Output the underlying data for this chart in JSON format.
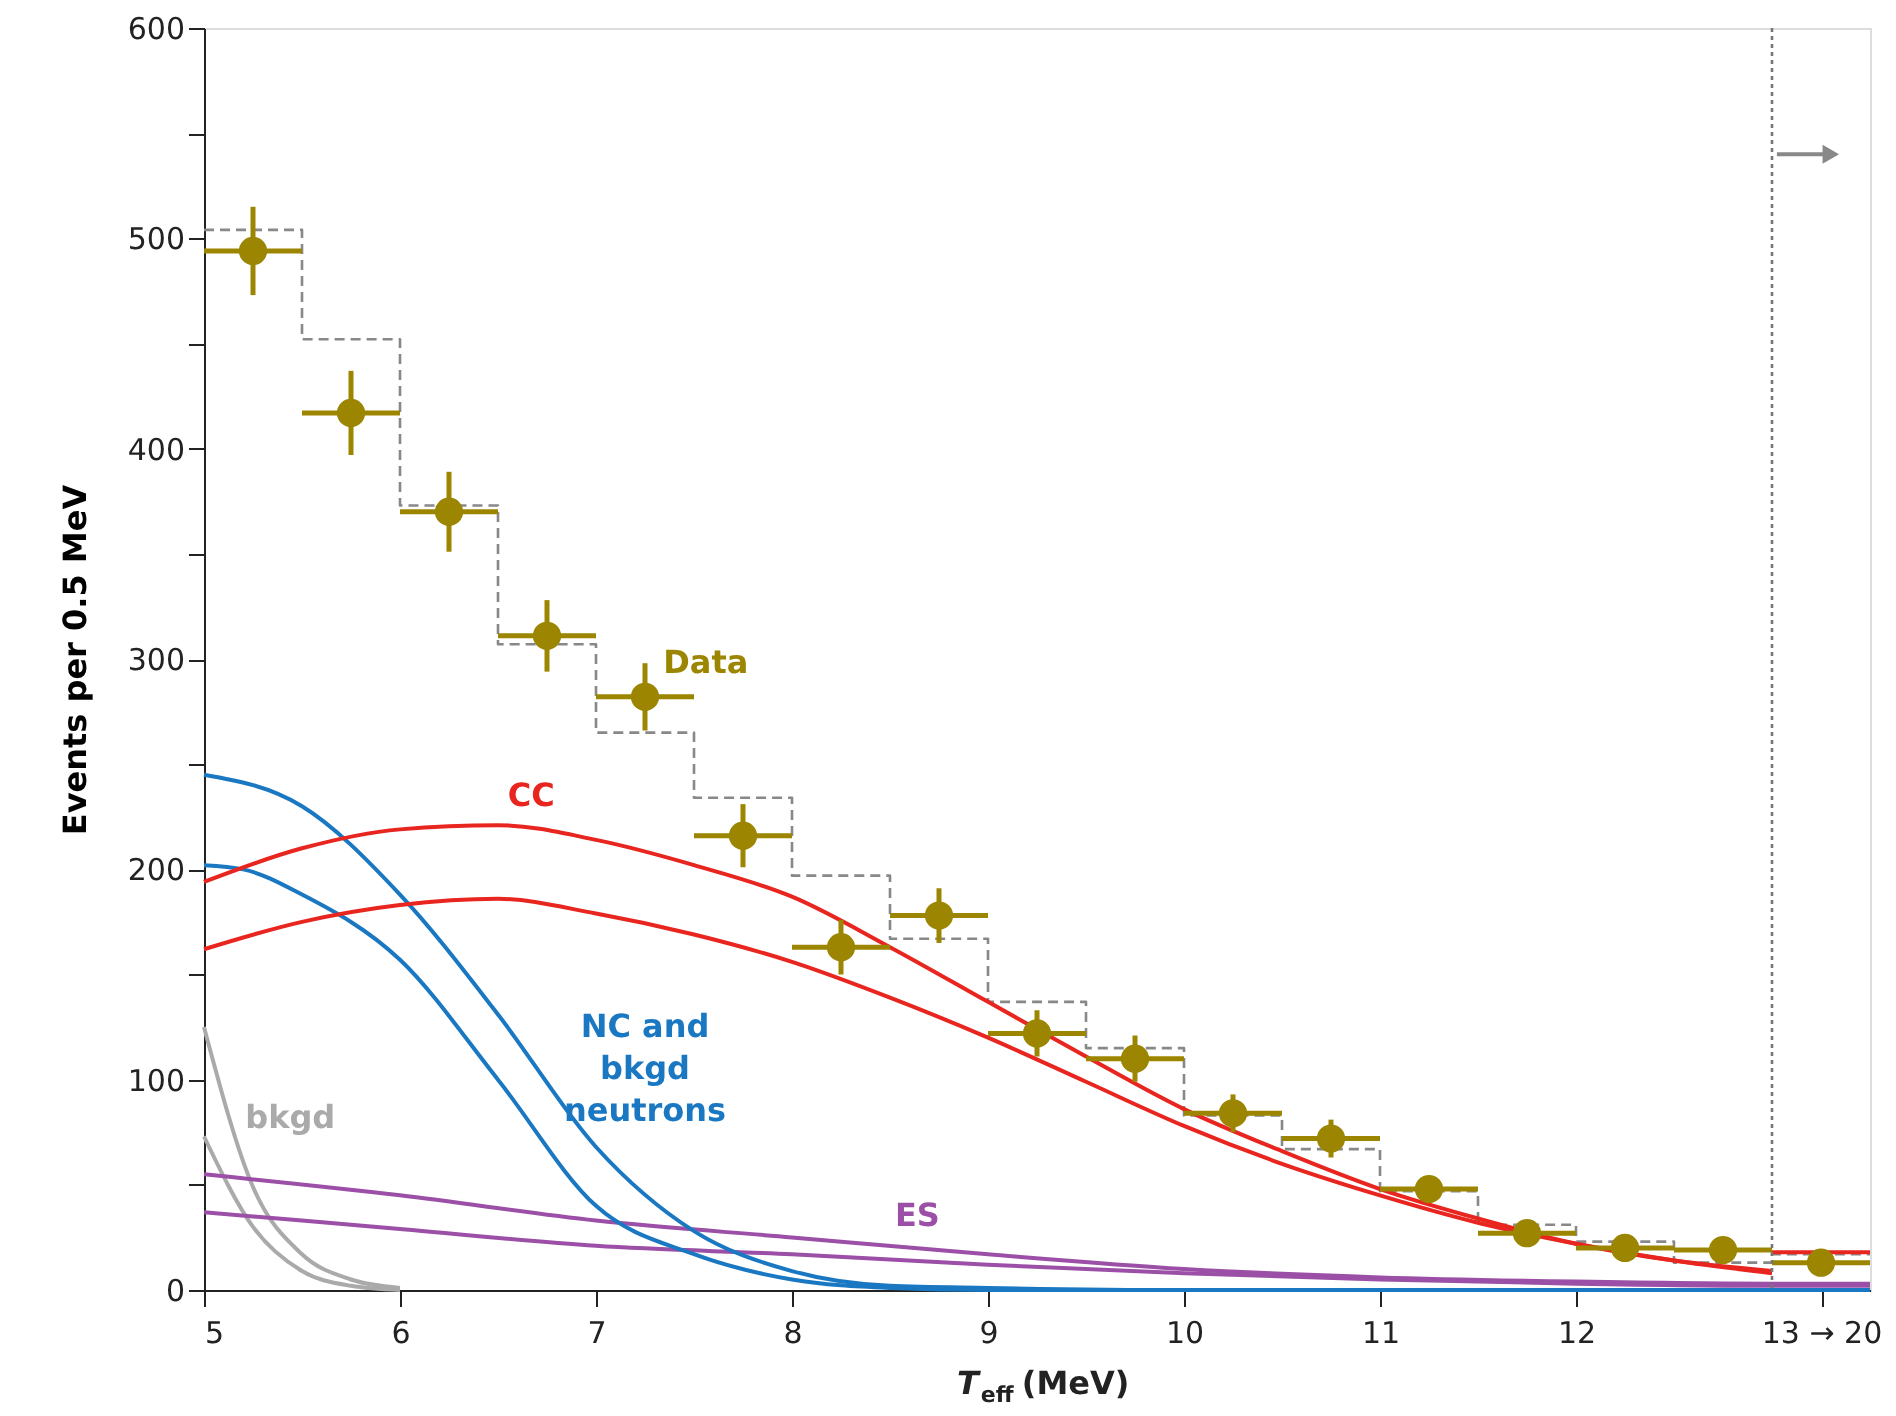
{
  "chart_data": {
    "type": "line",
    "xlabel": "T$_{eff}$ (MeV)",
    "ylabel": "Events per 0.5 MeV",
    "xlim": [
      5,
      13.5
    ],
    "ylim": [
      0,
      600
    ],
    "xticks": [
      5,
      6,
      7,
      8,
      9,
      10,
      11,
      12,
      {
        "value": 13.25,
        "label": "13 → 20"
      }
    ],
    "yticks": [
      0,
      {
        "value": 50,
        "label": null
      },
      100,
      {
        "value": 150,
        "label": null
      },
      200,
      {
        "value": 250,
        "label": null
      },
      300,
      {
        "value": 350,
        "label": null
      },
      400,
      {
        "value": 450,
        "label": null
      },
      500,
      {
        "value": 550,
        "label": null
      },
      600
    ],
    "grid": false,
    "ref_lines": [
      {
        "axis": "x",
        "value": 13,
        "label": null,
        "color": "#777777",
        "line_style": "dotted"
      }
    ],
    "series": [
      {
        "type": "step",
        "color": "#888888",
        "line_style": "dashed",
        "x": [
          5,
          5.5,
          6,
          6.5,
          7,
          7.5,
          8,
          8.5,
          9,
          9.5,
          10,
          10.5,
          11,
          11.5,
          12,
          12.5,
          13,
          13.5
        ],
        "values": [
          504,
          452,
          373,
          307,
          265,
          234,
          197,
          167,
          137,
          115,
          83,
          67,
          47,
          31,
          23,
          13,
          17,
          17
        ]
      },
      {
        "type": "line",
        "name": "bkgd",
        "color": "#aaaaaa",
        "x": [
          5,
          5.25,
          5.5,
          5.75,
          6
        ],
        "values": [
          125,
          49,
          17,
          5,
          1
        ]
      },
      {
        "type": "line",
        "color": "#aaaaaa",
        "x": [
          5,
          5.25,
          5.5,
          5.75,
          6
        ],
        "values": [
          73,
          30,
          9,
          2,
          0
        ]
      },
      {
        "type": "line",
        "name": "ES",
        "color": "#9b4fa6",
        "x": [
          5,
          6,
          7,
          8,
          9,
          10,
          11,
          12,
          13,
          13.5
        ],
        "values": [
          55,
          45,
          33,
          25,
          17,
          10,
          6,
          4,
          3,
          3
        ]
      },
      {
        "type": "line",
        "color": "#9b4fa6",
        "x": [
          5,
          6,
          7,
          8,
          9,
          10,
          11,
          12,
          13,
          13.5
        ],
        "values": [
          37,
          29,
          21,
          17,
          12,
          8,
          5,
          3,
          2,
          2
        ]
      },
      {
        "type": "line",
        "name": "NC and bkgd neutrons",
        "color": "#1a78c2",
        "x": [
          5,
          5.5,
          6,
          6.5,
          7,
          7.5,
          8,
          8.5,
          9,
          10,
          11,
          12,
          13,
          13.5
        ],
        "values": [
          245,
          230,
          188,
          131,
          68,
          28,
          9,
          2,
          1,
          0,
          0,
          0,
          0,
          0
        ]
      },
      {
        "type": "line",
        "color": "#1a78c2",
        "x": [
          5,
          5.2,
          5.5,
          6,
          6.5,
          7,
          7.5,
          8,
          8.5,
          9,
          10,
          11,
          12,
          13,
          13.5
        ],
        "values": [
          202,
          200,
          188,
          157,
          100,
          40,
          17,
          5,
          1,
          0,
          0,
          0,
          0,
          0,
          0
        ]
      },
      {
        "type": "line",
        "name": "CC",
        "color": "#e8251f",
        "x": [
          5,
          5.5,
          6,
          6.5,
          7,
          7.5,
          8,
          8.5,
          9,
          9.5,
          10,
          10.5,
          11,
          11.5,
          12,
          12.5,
          13
        ],
        "values": [
          194,
          210,
          219,
          221,
          214,
          202,
          187,
          163,
          137,
          111,
          86,
          66,
          48,
          34,
          22,
          14,
          9
        ]
      },
      {
        "type": "line",
        "color": "#e8251f",
        "x": [
          5,
          5.5,
          6,
          6.5,
          7,
          7.5,
          8,
          8.5,
          9,
          9.5,
          10,
          10.5,
          11,
          11.5,
          12,
          12.5,
          13
        ],
        "values": [
          162,
          175,
          183,
          186,
          179,
          169,
          156,
          139,
          120,
          99,
          78,
          60,
          45,
          32,
          22,
          14,
          8
        ]
      },
      {
        "type": "line",
        "color": "#e8251f",
        "x": [
          13,
          13.5
        ],
        "values": [
          18,
          18
        ]
      },
      {
        "type": "scatter",
        "name": "Data",
        "color": "#9c8500",
        "marker": "circle",
        "x": [
          5.25,
          5.75,
          6.25,
          6.75,
          7.25,
          7.75,
          8.25,
          8.75,
          9.25,
          9.75,
          10.25,
          10.75,
          11.25,
          11.75,
          12.25,
          12.75,
          13.25
        ],
        "values": [
          494,
          417,
          370,
          311,
          282,
          216,
          163,
          178,
          122,
          110,
          84,
          72,
          48,
          27,
          20,
          19,
          13
        ],
        "errors": [
          21,
          20,
          19,
          17,
          16,
          15,
          13,
          13,
          11,
          11,
          9,
          9,
          6,
          5,
          4,
          4,
          4
        ],
        "xerrors": [
          0.25,
          0.25,
          0.25,
          0.25,
          0.25,
          0.25,
          0.25,
          0.25,
          0.25,
          0.25,
          0.25,
          0.25,
          0.25,
          0.25,
          0.25,
          0.25,
          0.25
        ]
      }
    ]
  }
}
